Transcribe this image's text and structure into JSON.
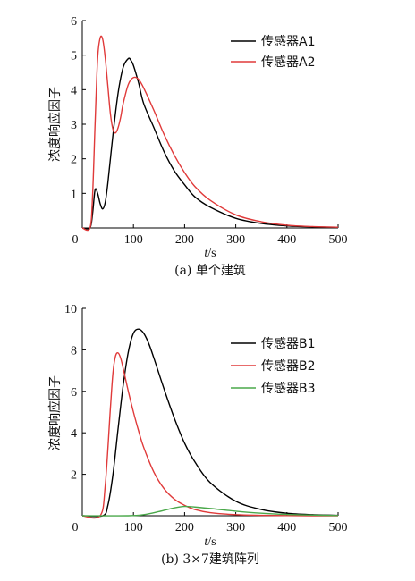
{
  "chart_data": [
    {
      "type": "line",
      "caption": "(a) 单个建筑",
      "xlabel_var": "t",
      "xlabel_unit": "/s",
      "ylabel": "浓度响应因子",
      "xlim": [
        0,
        500
      ],
      "ylim": [
        0,
        6
      ],
      "xticks": [
        0,
        100,
        200,
        300,
        400,
        500
      ],
      "yticks": [
        1,
        2,
        3,
        4,
        5,
        6
      ],
      "grid": false,
      "legend_position": "top-right",
      "series": [
        {
          "name": "传感器A1",
          "color": "#000000",
          "x": [
            0,
            15,
            20,
            25,
            30,
            35,
            40,
            45,
            50,
            60,
            70,
            80,
            90,
            95,
            100,
            110,
            120,
            140,
            160,
            180,
            200,
            220,
            250,
            300,
            350,
            400,
            450,
            500
          ],
          "y": [
            0,
            0,
            0.4,
            1.1,
            1.0,
            0.7,
            0.55,
            0.75,
            1.3,
            2.7,
            3.9,
            4.65,
            4.9,
            4.85,
            4.7,
            4.2,
            3.6,
            2.9,
            2.2,
            1.65,
            1.25,
            0.9,
            0.6,
            0.28,
            0.13,
            0.06,
            0.03,
            0.02
          ]
        },
        {
          "name": "传感器A2",
          "color": "#e03a3a",
          "x": [
            0,
            15,
            20,
            25,
            30,
            35,
            40,
            45,
            50,
            55,
            60,
            65,
            70,
            75,
            80,
            90,
            100,
            110,
            120,
            140,
            160,
            180,
            200,
            220,
            250,
            300,
            350,
            400,
            450,
            500
          ],
          "y": [
            0,
            0,
            0.9,
            3.0,
            4.9,
            5.5,
            5.45,
            4.9,
            4.1,
            3.3,
            2.85,
            2.75,
            2.9,
            3.2,
            3.6,
            4.15,
            4.35,
            4.3,
            4.05,
            3.4,
            2.7,
            2.1,
            1.6,
            1.2,
            0.8,
            0.38,
            0.18,
            0.08,
            0.04,
            0.02
          ]
        }
      ]
    },
    {
      "type": "line",
      "caption": "(b) 3×7建筑阵列",
      "xlabel_var": "t",
      "xlabel_unit": "/s",
      "ylabel": "浓度响应因子",
      "xlim": [
        0,
        500
      ],
      "ylim": [
        0,
        10
      ],
      "xticks": [
        0,
        100,
        200,
        300,
        400,
        500
      ],
      "yticks": [
        2,
        4,
        6,
        8,
        10
      ],
      "grid": false,
      "legend_position": "top-right",
      "series": [
        {
          "name": "传感器B1",
          "color": "#000000",
          "x": [
            0,
            40,
            50,
            60,
            70,
            80,
            90,
            100,
            110,
            120,
            130,
            140,
            160,
            180,
            200,
            220,
            250,
            300,
            350,
            400,
            450,
            500
          ],
          "y": [
            0,
            0,
            0.5,
            2.0,
            4.2,
            6.3,
            7.9,
            8.8,
            9.0,
            8.8,
            8.3,
            7.6,
            6.1,
            4.7,
            3.5,
            2.6,
            1.6,
            0.7,
            0.3,
            0.12,
            0.05,
            0.02
          ]
        },
        {
          "name": "传感器B2",
          "color": "#e03a3a",
          "x": [
            0,
            35,
            45,
            55,
            60,
            65,
            70,
            75,
            80,
            90,
            100,
            110,
            120,
            140,
            160,
            180,
            200,
            220,
            250,
            300,
            350,
            400,
            450,
            500
          ],
          "y": [
            0,
            0,
            1.5,
            5.2,
            6.9,
            7.7,
            7.85,
            7.6,
            7.1,
            6.0,
            5.0,
            4.1,
            3.3,
            2.1,
            1.3,
            0.8,
            0.5,
            0.3,
            0.15,
            0.05,
            0.02,
            0.01,
            0.0,
            0.0
          ]
        },
        {
          "name": "传感器B3",
          "color": "#4aa84a",
          "x": [
            0,
            90,
            120,
            150,
            180,
            200,
            220,
            250,
            300,
            350,
            400,
            450,
            500
          ],
          "y": [
            0,
            0,
            0.05,
            0.2,
            0.38,
            0.45,
            0.42,
            0.35,
            0.22,
            0.12,
            0.06,
            0.03,
            0.01
          ]
        }
      ]
    }
  ]
}
